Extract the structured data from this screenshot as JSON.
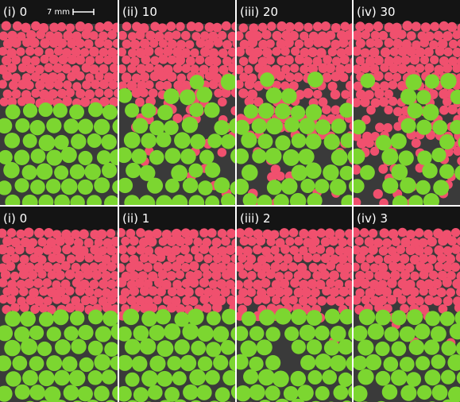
{
  "panels": [
    {
      "label": "(i) 0"
    },
    {
      "label": "(ii) 10"
    },
    {
      "label": "(iii) 20"
    },
    {
      "label": "(iv) 30"
    },
    {
      "label": "(i) 0"
    },
    {
      "label": "(ii) 1"
    },
    {
      "label": "(iii) 2"
    },
    {
      "label": "(iv) 3"
    }
  ],
  "scale_bar": {
    "label": "7 mm"
  }
}
